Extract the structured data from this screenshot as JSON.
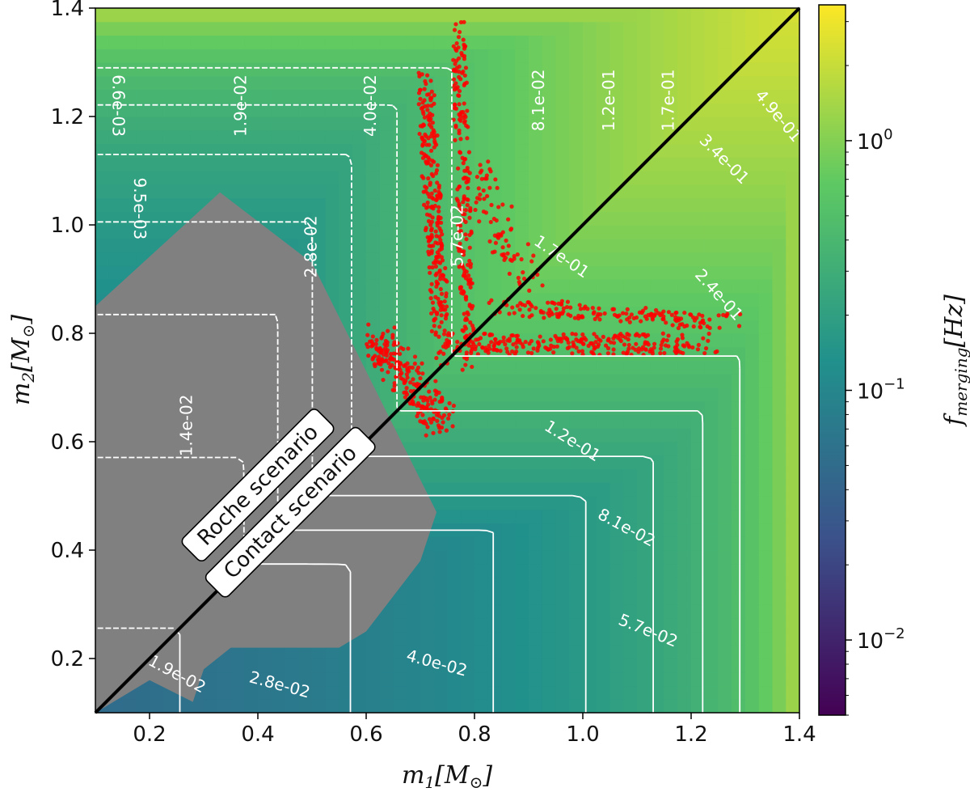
{
  "chart_data": {
    "type": "heatmap",
    "title": "",
    "xlabel": "m_1[M_⊙]",
    "ylabel": "m_2[M_⊙]",
    "xlabel_parts": {
      "main": "m",
      "sub": "1",
      "rest": "[M",
      "rest_sub": "⊙",
      "close": "]"
    },
    "ylabel_parts": {
      "main": "m",
      "sub": "2",
      "rest": "[M",
      "rest_sub": "⊙",
      "close": "]"
    },
    "xlim": [
      0.1,
      1.4
    ],
    "ylim": [
      0.1,
      1.4
    ],
    "xticks": [
      0.2,
      0.4,
      0.6,
      0.8,
      1.0,
      1.2,
      1.4
    ],
    "xtick_labels": [
      "0.2",
      "0.4",
      "0.6",
      "0.8",
      "1.0",
      "1.2",
      "1.4"
    ],
    "yticks": [
      0.2,
      0.4,
      0.6,
      0.8,
      1.0,
      1.2,
      1.4
    ],
    "ytick_labels": [
      "0.2",
      "0.4",
      "0.6",
      "0.8",
      "1.0",
      "1.2",
      "1.4"
    ],
    "colorbar": {
      "label": "f_merging[Hz]",
      "label_parts": {
        "main": "f",
        "sub": "merging",
        "rest": "[Hz]"
      },
      "scale": "log",
      "range": [
        0.005,
        3.5
      ],
      "ticks": [
        0.01,
        0.1,
        1
      ],
      "tick_labels": [
        {
          "base": "10",
          "exp": "−2"
        },
        {
          "base": "10",
          "exp": "−1"
        },
        {
          "base": "10",
          "exp": "0"
        }
      ],
      "colormap": [
        "#440154",
        "#3b528b",
        "#21918c",
        "#5ec962",
        "#fde725"
      ]
    },
    "diagonal_line": {
      "from": [
        0.1,
        0.1
      ],
      "to": [
        1.4,
        1.4
      ],
      "color": "#000000"
    },
    "annotations": [
      {
        "text": "Roche scenario",
        "x": 0.4,
        "y": 0.52,
        "rotation_deg": 45
      },
      {
        "text": "Contact scenario",
        "x": 0.46,
        "y": 0.47,
        "rotation_deg": 45
      }
    ],
    "contours": {
      "upper_dashed_labels": [
        "6.6e-03",
        "9.5e-03",
        "1.4e-02",
        "1.9e-02",
        "2.8e-02",
        "4.0e-02",
        "5.7e-02",
        "8.1e-02",
        "1.2e-01",
        "1.7e-01"
      ],
      "lower_solid_labels": [
        "1.9e-02",
        "2.8e-02",
        "4.0e-02",
        "5.7e-02",
        "8.1e-02",
        "1.2e-01",
        "1.7e-01",
        "2.4e-01",
        "3.4e-01",
        "4.9e-01"
      ],
      "levels": [
        0.0066,
        0.0095,
        0.014,
        0.019,
        0.028,
        0.04,
        0.057,
        0.081,
        0.12,
        0.17,
        0.24,
        0.34,
        0.49
      ],
      "line_color": "#ffffff"
    },
    "overlays": [
      {
        "name": "grey",
        "color": "#808080"
      },
      {
        "name": "red",
        "color": "#ff0000"
      }
    ]
  }
}
